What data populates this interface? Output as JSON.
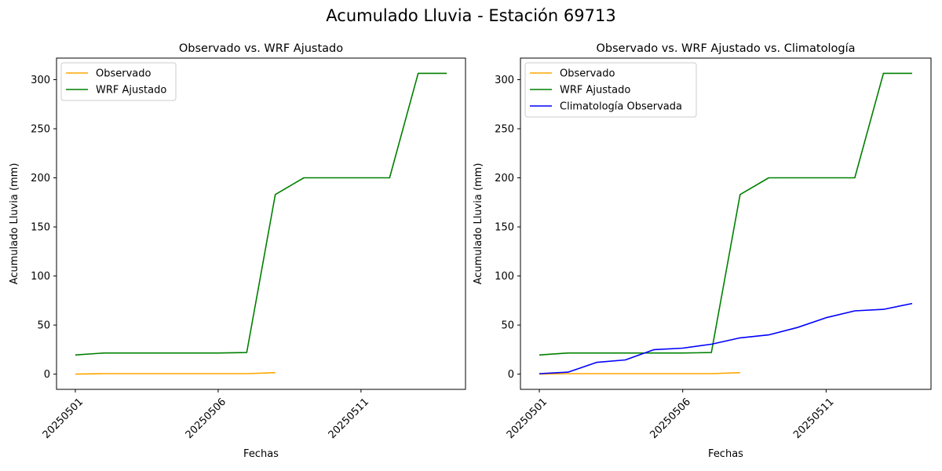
{
  "figure": {
    "title": "Acumulado Lluvia - Estación 69713"
  },
  "chart_data": [
    {
      "type": "line",
      "title": "Observado vs. WRF Ajustado",
      "xlabel": "Fechas",
      "ylabel": "Acumulado Lluvia (mm)",
      "x": [
        "20250501",
        "20250502",
        "20250503",
        "20250504",
        "20250505",
        "20250506",
        "20250507",
        "20250508",
        "20250509",
        "20250510",
        "20250511",
        "20250512",
        "20250513",
        "20250514"
      ],
      "xticks": [
        "20250501",
        "20250506",
        "20250511"
      ],
      "yticks": [
        0,
        50,
        100,
        150,
        200,
        250,
        300
      ],
      "ylim": [
        -15.5,
        322
      ],
      "legend": "top-left",
      "series": [
        {
          "name": "Observado",
          "color": "#ffa500",
          "values": [
            0,
            0.5,
            0.5,
            0.5,
            0.5,
            0.5,
            0.5,
            1.5,
            null,
            null,
            null,
            null,
            null,
            null
          ]
        },
        {
          "name": "WRF Ajustado",
          "color": "#008000",
          "values": [
            19.5,
            21.5,
            21.5,
            21.5,
            21.5,
            21.5,
            22,
            183,
            200,
            200,
            200,
            200,
            306.5,
            306.5
          ]
        }
      ]
    },
    {
      "type": "line",
      "title": "Observado vs. WRF Ajustado vs. Climatología",
      "xlabel": "Fechas",
      "ylabel": "Acumulado Lluvia (mm)",
      "x": [
        "20250501",
        "20250502",
        "20250503",
        "20250504",
        "20250505",
        "20250506",
        "20250507",
        "20250508",
        "20250509",
        "20250510",
        "20250511",
        "20250512",
        "20250513",
        "20250514"
      ],
      "xticks": [
        "20250501",
        "20250506",
        "20250511"
      ],
      "yticks": [
        0,
        50,
        100,
        150,
        200,
        250,
        300
      ],
      "ylim": [
        -15.5,
        322
      ],
      "legend": "top-left",
      "series": [
        {
          "name": "Observado",
          "color": "#ffa500",
          "values": [
            0,
            0.5,
            0.5,
            0.5,
            0.5,
            0.5,
            0.5,
            1.5,
            null,
            null,
            null,
            null,
            null,
            null
          ]
        },
        {
          "name": "WRF Ajustado",
          "color": "#008000",
          "values": [
            19.5,
            21.5,
            21.5,
            21.5,
            21.5,
            21.5,
            22,
            183,
            200,
            200,
            200,
            200,
            306.5,
            306.5
          ]
        },
        {
          "name": "Climatología Observada",
          "color": "#0000ff",
          "values": [
            0.5,
            2,
            12,
            14.5,
            25,
            26.5,
            30.5,
            37,
            40,
            47.5,
            57.5,
            64.5,
            66,
            72
          ]
        }
      ]
    }
  ]
}
